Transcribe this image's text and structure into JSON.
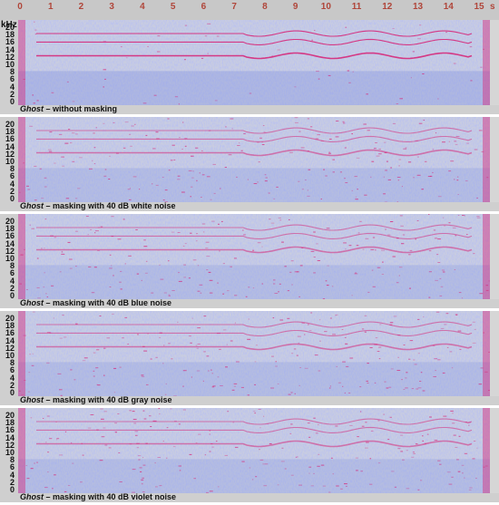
{
  "time_axis": {
    "unit": "s",
    "ticks": [
      "0",
      "1",
      "2",
      "3",
      "4",
      "5",
      "6",
      "7",
      "8",
      "9",
      "10",
      "11",
      "12",
      "13",
      "14",
      "15"
    ]
  },
  "freq_axis": {
    "unit": "kHz",
    "ticks": [
      "20",
      "18",
      "16",
      "14",
      "12",
      "10",
      "8",
      "6",
      "4",
      "2",
      "0"
    ]
  },
  "panels": [
    {
      "title": "Ghost",
      "caption": " – without masking",
      "noise_color": "#8a9ad8",
      "accent": "#d6287a"
    },
    {
      "title": "Ghost",
      "caption": " – masking with 40 dB white noise",
      "noise_color": "#8a9ad8",
      "accent": "#d6287a"
    },
    {
      "title": "Ghost",
      "caption": " – masking with 40 dB blue noise",
      "noise_color": "#8a9ad8",
      "accent": "#d6287a"
    },
    {
      "title": "Ghost",
      "caption": " – masking with 40 dB gray noise",
      "noise_color": "#8a9ad8",
      "accent": "#d6287a"
    },
    {
      "title": "Ghost",
      "caption": " – masking with 40 dB violet noise",
      "noise_color": "#8a9ad8",
      "accent": "#d6287a"
    }
  ]
}
